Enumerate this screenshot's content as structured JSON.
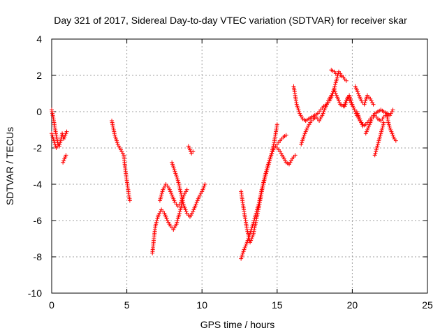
{
  "chart_data": {
    "type": "scatter",
    "title": "Day 321 of 2017, Sidereal Day-to-day VTEC variation (SDTVAR) for receiver skar",
    "xlabel": "GPS time / hours",
    "ylabel": "SDTVAR / TECUs",
    "xlim": [
      0,
      25
    ],
    "ylim": [
      -10,
      4
    ],
    "xticks": [
      0,
      5,
      10,
      15,
      20,
      25
    ],
    "yticks": [
      -10,
      -8,
      -6,
      -4,
      -2,
      0,
      2,
      4
    ],
    "grid": true,
    "marker": "+",
    "color": "#ff0000",
    "segments": [
      {
        "name": "arc-1",
        "x": [
          0.0,
          0.1,
          0.2,
          0.3,
          0.4,
          0.5,
          0.6,
          0.7,
          0.8,
          0.9,
          1.0
        ],
        "y": [
          0.1,
          -0.3,
          -0.8,
          -1.3,
          -1.7,
          -1.9,
          -1.6,
          -1.2,
          -1.5,
          -1.3,
          -1.1
        ]
      },
      {
        "name": "arc-1b",
        "x": [
          0.0,
          0.15,
          0.3,
          0.45
        ],
        "y": [
          -1.2,
          -1.6,
          -2.0,
          -1.8
        ]
      },
      {
        "name": "arc-2",
        "x": [
          0.75,
          0.85,
          0.95
        ],
        "y": [
          -2.8,
          -2.6,
          -2.4
        ]
      },
      {
        "name": "arc-3",
        "x": [
          4.0,
          4.2,
          4.4,
          4.6,
          4.8,
          4.9,
          5.0,
          5.1,
          5.2
        ],
        "y": [
          -0.5,
          -1.3,
          -1.8,
          -2.1,
          -2.4,
          -3.2,
          -3.8,
          -4.4,
          -4.9
        ]
      },
      {
        "name": "arc-4",
        "x": [
          6.7,
          6.8,
          6.9,
          7.1,
          7.3,
          7.5,
          7.7,
          7.9,
          8.1,
          8.3,
          8.5,
          8.7
        ],
        "y": [
          -7.8,
          -7.0,
          -6.3,
          -5.7,
          -5.4,
          -5.6,
          -6.0,
          -6.3,
          -6.5,
          -6.2,
          -5.6,
          -5.0
        ]
      },
      {
        "name": "arc-5",
        "x": [
          7.2,
          7.4,
          7.6,
          7.8,
          8.0,
          8.2,
          8.4,
          8.6,
          8.8,
          9.0
        ],
        "y": [
          -4.9,
          -4.3,
          -4.0,
          -4.2,
          -4.6,
          -5.0,
          -5.2,
          -5.0,
          -4.6,
          -4.3
        ]
      },
      {
        "name": "arc-6",
        "x": [
          8.0,
          8.2,
          8.4,
          8.6,
          8.8,
          9.0,
          9.2,
          9.4,
          9.6,
          9.8,
          10.0,
          10.2
        ],
        "y": [
          -2.8,
          -3.3,
          -3.8,
          -4.5,
          -5.2,
          -5.6,
          -5.8,
          -5.5,
          -5.1,
          -4.7,
          -4.4,
          -4.0
        ]
      },
      {
        "name": "arc-7",
        "x": [
          9.1,
          9.2,
          9.3,
          9.4
        ],
        "y": [
          -1.9,
          -2.1,
          -2.3,
          -2.2
        ]
      },
      {
        "name": "arc-8",
        "x": [
          12.6,
          12.8,
          13.0,
          13.2,
          13.4,
          13.6,
          13.8,
          14.0,
          14.2,
          14.4,
          14.6,
          14.8,
          15.0,
          15.2,
          15.4,
          15.6
        ],
        "y": [
          -8.1,
          -7.6,
          -7.2,
          -6.7,
          -6.2,
          -5.6,
          -5.0,
          -4.2,
          -3.5,
          -2.9,
          -2.4,
          -2.0,
          -1.8,
          -1.6,
          -1.4,
          -1.3
        ]
      },
      {
        "name": "arc-9",
        "x": [
          12.6,
          12.8,
          13.0,
          13.2,
          13.4,
          13.6,
          13.8,
          14.0,
          14.2,
          14.4,
          14.6,
          14.8,
          15.0
        ],
        "y": [
          -4.4,
          -5.5,
          -6.5,
          -7.2,
          -6.8,
          -6.0,
          -5.2,
          -4.3,
          -3.6,
          -3.0,
          -2.4,
          -1.7,
          -0.7
        ]
      },
      {
        "name": "arc-10",
        "x": [
          15.0,
          15.2,
          15.4,
          15.6,
          15.8,
          16.0,
          16.2
        ],
        "y": [
          -2.0,
          -2.2,
          -2.5,
          -2.8,
          -2.9,
          -2.6,
          -2.4
        ]
      },
      {
        "name": "arc-11",
        "x": [
          16.1,
          16.3,
          16.5,
          16.7,
          16.9,
          17.1,
          17.3,
          17.5,
          17.7,
          17.9,
          18.1,
          18.3,
          18.5,
          18.7,
          18.9,
          19.1,
          19.3
        ],
        "y": [
          1.4,
          0.4,
          -0.1,
          -0.4,
          -0.5,
          -0.4,
          -0.3,
          -0.2,
          -0.1,
          0.1,
          0.3,
          0.4,
          0.6,
          1.0,
          1.6,
          2.2,
          2.0
        ]
      },
      {
        "name": "arc-12",
        "x": [
          16.6,
          16.8,
          17.0,
          17.2,
          17.4,
          17.6,
          17.8,
          18.0,
          18.2,
          18.4,
          18.6,
          18.8,
          19.0,
          19.2,
          19.4,
          19.6,
          19.8,
          20.0
        ],
        "y": [
          -1.8,
          -1.3,
          -0.9,
          -0.6,
          -0.4,
          -0.3,
          -0.5,
          -0.2,
          0.2,
          0.6,
          0.9,
          1.2,
          0.8,
          0.4,
          0.3,
          0.6,
          0.9,
          0.4
        ]
      },
      {
        "name": "arc-13",
        "x": [
          18.6,
          18.8,
          19.0,
          19.2,
          19.4,
          19.6
        ],
        "y": [
          2.3,
          2.2,
          2.0,
          2.0,
          1.9,
          1.7
        ]
      },
      {
        "name": "arc-14",
        "x": [
          19.5,
          19.7,
          19.9,
          20.1,
          20.3,
          20.5,
          20.7
        ],
        "y": [
          0.3,
          0.8,
          0.5,
          0.2,
          -0.2,
          -0.5,
          -0.7
        ]
      },
      {
        "name": "arc-15",
        "x": [
          20.2,
          20.4,
          20.6,
          20.8,
          21.0,
          21.2,
          21.4
        ],
        "y": [
          1.4,
          1.0,
          0.6,
          0.4,
          0.9,
          0.7,
          0.4
        ]
      },
      {
        "name": "arc-16",
        "x": [
          20.3,
          20.5,
          20.7,
          20.9,
          21.1,
          21.3,
          21.5,
          21.7,
          21.9,
          22.1,
          22.3,
          22.5,
          22.7
        ],
        "y": [
          0.0,
          -0.4,
          -0.8,
          -0.7,
          -0.5,
          -0.3,
          -0.1,
          0.0,
          0.1,
          0.0,
          -0.1,
          -0.2,
          0.1
        ]
      },
      {
        "name": "arc-17",
        "x": [
          21.5,
          21.6,
          21.7,
          21.8,
          21.9,
          22.0,
          22.1
        ],
        "y": [
          -2.4,
          -2.1,
          -1.8,
          -1.5,
          -1.2,
          -0.9,
          -0.6
        ]
      },
      {
        "name": "arc-18",
        "x": [
          22.3,
          22.4,
          22.5,
          22.6,
          22.7,
          22.8,
          22.9
        ],
        "y": [
          -0.2,
          -0.6,
          -0.9,
          -1.1,
          -1.3,
          -1.5,
          -1.6
        ]
      },
      {
        "name": "arc-19",
        "x": [
          20.9,
          21.1,
          21.3,
          21.5,
          21.7,
          21.9,
          22.1,
          22.3
        ],
        "y": [
          -1.2,
          -0.8,
          -0.4,
          -0.2,
          -0.4,
          -0.5,
          -0.3,
          -0.1
        ]
      }
    ]
  }
}
